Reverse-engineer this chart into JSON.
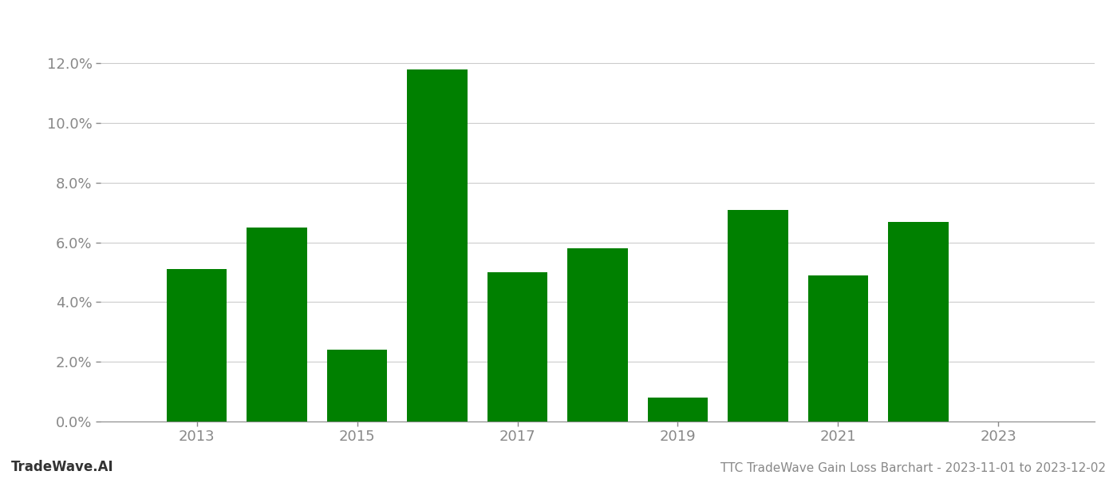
{
  "years": [
    2013,
    2014,
    2015,
    2016,
    2017,
    2018,
    2019,
    2020,
    2021,
    2022
  ],
  "values": [
    0.051,
    0.065,
    0.024,
    0.118,
    0.05,
    0.058,
    0.008,
    0.071,
    0.049,
    0.067
  ],
  "bar_color": "#008000",
  "title": "TTC TradeWave Gain Loss Barchart - 2023-11-01 to 2023-12-02",
  "watermark": "TradeWave.AI",
  "ylim": [
    0,
    0.13
  ],
  "yticks": [
    0.0,
    0.02,
    0.04,
    0.06,
    0.08,
    0.1,
    0.12
  ],
  "xlim": [
    2011.8,
    2024.2
  ],
  "xticks": [
    2013,
    2015,
    2017,
    2019,
    2021,
    2023
  ],
  "background_color": "#ffffff",
  "grid_color": "#cccccc",
  "tick_label_color": "#888888",
  "title_color": "#888888",
  "watermark_color": "#333333",
  "title_fontsize": 11,
  "watermark_fontsize": 12,
  "tick_fontsize": 13,
  "bar_width": 0.75
}
